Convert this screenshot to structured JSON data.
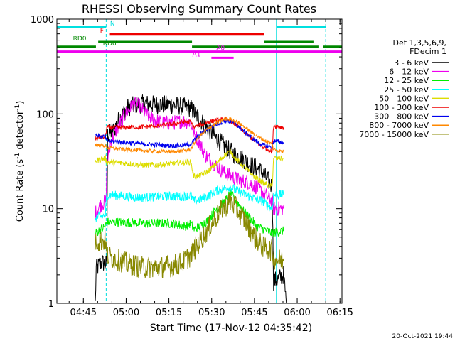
{
  "chart_data": {
    "type": "line",
    "title": "RHESSI Observing Summary Count Rates",
    "xlabel": "Start Time (17-Nov-12 04:35:42)",
    "ylabel_main": "Count Rate (s",
    "ylabel_sup1": "-1",
    "ylabel_mid": " detector",
    "ylabel_sup2": "-1",
    "ylabel_end": ")",
    "x_unit": "minutes since 04:35:42",
    "xlim": [
      0,
      100
    ],
    "ylim": [
      1,
      1000
    ],
    "yscale": "log",
    "x_ticks": [
      {
        "label": "04:45",
        "x": 9.3
      },
      {
        "label": "05:00",
        "x": 24.3
      },
      {
        "label": "05:15",
        "x": 39.3
      },
      {
        "label": "05:30",
        "x": 54.3
      },
      {
        "label": "05:45",
        "x": 69.3
      },
      {
        "label": "06:00",
        "x": 84.3
      },
      {
        "label": "06:15",
        "x": 99.3
      }
    ],
    "y_ticks": [
      {
        "label": "1",
        "y": 1
      },
      {
        "label": "10",
        "y": 10
      },
      {
        "label": "100",
        "y": 100
      },
      {
        "label": "1000",
        "y": 1000
      }
    ],
    "legend_header": [
      "Det 1,3,5,6,9,",
      "FDecim 1"
    ],
    "footer_timestamp": "20-Oct-2021 19:44",
    "vertical_markers": [
      {
        "x": 17.3,
        "color": "#00dddd",
        "style": "dashed"
      },
      {
        "x": 77.0,
        "color": "#00dddd",
        "style": "solid"
      },
      {
        "x": 94.3,
        "color": "#00dddd",
        "style": "dashed"
      }
    ],
    "flag_bars": [
      {
        "label": "N",
        "color": "#00e0e0",
        "label_x": 19.5,
        "y_frac": 0.027,
        "segments": [
          [
            0,
            17.3
          ],
          [
            77.3,
            94.3
          ]
        ]
      },
      {
        "label": "F",
        "color": "#ee0000",
        "label_x": 15.8,
        "y_frac": 0.052,
        "segments": [
          [
            18.6,
            72.7
          ]
        ]
      },
      {
        "label": "RD0",
        "color": "#008800",
        "label_x": 8.0,
        "y_frac": 0.08,
        "segments": [
          [
            14.5,
            47.4
          ],
          [
            72.7,
            90.0
          ]
        ]
      },
      {
        "label": "RD6",
        "color": "#008800",
        "label_x": 18.5,
        "y_frac": 0.097,
        "segments": [
          [
            0,
            13.7
          ],
          [
            47.4,
            92.0
          ],
          [
            93.5,
            100
          ]
        ]
      },
      {
        "label": "A0",
        "color": "#ee00ee",
        "label_x": 57.4,
        "y_frac": 0.114,
        "segments": [
          [
            0,
            100
          ]
        ]
      },
      {
        "label": "A1",
        "color": "#ee00ee",
        "label_x": 49.0,
        "y_frac": 0.136,
        "segments": [
          [
            54.2,
            62.0
          ]
        ]
      }
    ],
    "series": [
      {
        "name": "3 - 6 keV",
        "color": "#000000",
        "noise": 0.1,
        "points": [
          [
            13.5,
            1
          ],
          [
            13.8,
            2.3
          ],
          [
            15.5,
            2.7
          ],
          [
            17.5,
            2.6
          ],
          [
            17.8,
            60
          ],
          [
            20,
            68
          ],
          [
            22,
            90
          ],
          [
            25,
            118
          ],
          [
            28,
            125
          ],
          [
            31,
            128
          ],
          [
            35,
            125
          ],
          [
            40,
            125
          ],
          [
            44,
            120
          ],
          [
            47,
            115
          ],
          [
            48,
            105
          ],
          [
            50,
            88
          ],
          [
            53,
            70
          ],
          [
            56,
            55
          ],
          [
            59,
            45
          ],
          [
            62,
            38
          ],
          [
            65,
            34
          ],
          [
            68,
            29
          ],
          [
            71,
            26
          ],
          [
            73,
            22
          ],
          [
            74.5,
            19
          ],
          [
            75.5,
            17
          ],
          [
            76,
            1.7
          ],
          [
            77.5,
            1.8
          ],
          [
            79.5,
            2.0
          ],
          [
            80.5,
            1.0
          ]
        ]
      },
      {
        "name": "6 - 12 keV",
        "color": "#ee00ee",
        "noise": 0.08,
        "points": [
          [
            13.5,
            9
          ],
          [
            15.5,
            11
          ],
          [
            17.2,
            12
          ],
          [
            17.6,
            30
          ],
          [
            19,
            52
          ],
          [
            21,
            68
          ],
          [
            24,
            100
          ],
          [
            27,
            128
          ],
          [
            29,
            120
          ],
          [
            32,
            95
          ],
          [
            36,
            82
          ],
          [
            40,
            80
          ],
          [
            44,
            84
          ],
          [
            47,
            82
          ],
          [
            48,
            62
          ],
          [
            50,
            50
          ],
          [
            52,
            37
          ],
          [
            55,
            30
          ],
          [
            58,
            25
          ],
          [
            61,
            22
          ],
          [
            64,
            20
          ],
          [
            67,
            19
          ],
          [
            70,
            17
          ],
          [
            73,
            14
          ],
          [
            75.5,
            12
          ],
          [
            76,
            10
          ],
          [
            79.5,
            10
          ]
        ]
      },
      {
        "name": "12 - 25 keV",
        "color": "#00ee00",
        "noise": 0.05,
        "points": [
          [
            13.5,
            5.5
          ],
          [
            17,
            6.5
          ],
          [
            17.5,
            7.2
          ],
          [
            24,
            7.2
          ],
          [
            30,
            7.0
          ],
          [
            36,
            7.0
          ],
          [
            41,
            7.0
          ],
          [
            45,
            6.5
          ],
          [
            47,
            7
          ],
          [
            48,
            6
          ],
          [
            50,
            6.5
          ],
          [
            53,
            7.5
          ],
          [
            56,
            10
          ],
          [
            59,
            12
          ],
          [
            61,
            14.5
          ],
          [
            63,
            12
          ],
          [
            66,
            9
          ],
          [
            68.5,
            7.5
          ],
          [
            70,
            6.5
          ],
          [
            73,
            6.0
          ],
          [
            75.5,
            5.5
          ],
          [
            76,
            5.6
          ],
          [
            79.5,
            5.8
          ]
        ]
      },
      {
        "name": "25 - 50 keV",
        "color": "#00ffff",
        "noise": 0.05,
        "points": [
          [
            13.5,
            8
          ],
          [
            17,
            8.5
          ],
          [
            17.5,
            14
          ],
          [
            24,
            13.5
          ],
          [
            30,
            13.0
          ],
          [
            36,
            13.5
          ],
          [
            41,
            13.5
          ],
          [
            45,
            13.5
          ],
          [
            47,
            13.8
          ],
          [
            48,
            12
          ],
          [
            50,
            12.5
          ],
          [
            53,
            13.5
          ],
          [
            56,
            15.5
          ],
          [
            59,
            16.5
          ],
          [
            61,
            17
          ],
          [
            63,
            15.5
          ],
          [
            66,
            14
          ],
          [
            69,
            13
          ],
          [
            72,
            12
          ],
          [
            75.5,
            10
          ],
          [
            76,
            14
          ],
          [
            79.5,
            14
          ]
        ]
      },
      {
        "name": "50 - 100 keV",
        "color": "#dddd00",
        "noise": 0.03,
        "points": [
          [
            13.5,
            32
          ],
          [
            17,
            34
          ],
          [
            17.5,
            31
          ],
          [
            24,
            30
          ],
          [
            30,
            29
          ],
          [
            36,
            29
          ],
          [
            41,
            30
          ],
          [
            45,
            31
          ],
          [
            47,
            31
          ],
          [
            48,
            22
          ],
          [
            50,
            22
          ],
          [
            53,
            25
          ],
          [
            56,
            30
          ],
          [
            59,
            37
          ],
          [
            61,
            40
          ],
          [
            63,
            33
          ],
          [
            66,
            27
          ],
          [
            69,
            22
          ],
          [
            72,
            19
          ],
          [
            75.5,
            17
          ],
          [
            76,
            34
          ],
          [
            79.5,
            34
          ]
        ]
      },
      {
        "name": "100 - 300 keV",
        "color": "#ee0000",
        "noise": 0.025,
        "points": [
          [
            13.5,
            55
          ],
          [
            17,
            57
          ],
          [
            17.5,
            72
          ],
          [
            24,
            72
          ],
          [
            30,
            73
          ],
          [
            36,
            75
          ],
          [
            41,
            78
          ],
          [
            44,
            82
          ],
          [
            47,
            82
          ],
          [
            48,
            72
          ],
          [
            50,
            76
          ],
          [
            53,
            82
          ],
          [
            56,
            86
          ],
          [
            59,
            87
          ],
          [
            61,
            84
          ],
          [
            63,
            76
          ],
          [
            66,
            63
          ],
          [
            69,
            53
          ],
          [
            72,
            45
          ],
          [
            75.5,
            40
          ],
          [
            76,
            75
          ],
          [
            79.5,
            72
          ]
        ]
      },
      {
        "name": "300 - 800 keV",
        "color": "#0000ee",
        "noise": 0.025,
        "points": [
          [
            13.5,
            60
          ],
          [
            17,
            57
          ],
          [
            17.5,
            52
          ],
          [
            24,
            50
          ],
          [
            30,
            48
          ],
          [
            36,
            47
          ],
          [
            41,
            46
          ],
          [
            45,
            47
          ],
          [
            47,
            48
          ],
          [
            48,
            52
          ],
          [
            50,
            60
          ],
          [
            53,
            70
          ],
          [
            56,
            78
          ],
          [
            59,
            84
          ],
          [
            61,
            83
          ],
          [
            63,
            78
          ],
          [
            66,
            64
          ],
          [
            69,
            54
          ],
          [
            72,
            47
          ],
          [
            75.5,
            45
          ],
          [
            76,
            52
          ],
          [
            79.5,
            50
          ]
        ]
      },
      {
        "name": "800 - 7000 keV",
        "color": "#ff8800",
        "noise": 0.02,
        "points": [
          [
            13.5,
            47
          ],
          [
            17,
            46
          ],
          [
            17.5,
            44
          ],
          [
            24,
            42
          ],
          [
            30,
            41
          ],
          [
            36,
            40
          ],
          [
            41,
            40
          ],
          [
            45,
            41
          ],
          [
            47,
            42
          ],
          [
            48,
            48
          ],
          [
            50,
            58
          ],
          [
            53,
            70
          ],
          [
            56,
            80
          ],
          [
            59,
            88
          ],
          [
            61,
            88
          ],
          [
            63,
            83
          ],
          [
            66,
            72
          ],
          [
            69,
            62
          ],
          [
            72,
            54
          ],
          [
            75.5,
            48
          ],
          [
            76,
            42
          ],
          [
            79.5,
            40
          ]
        ]
      },
      {
        "name": "7000 - 15000 keV",
        "color": "#888800",
        "noise": 0.12,
        "points": [
          [
            13.5,
            4.5
          ],
          [
            17,
            4.6
          ],
          [
            17.5,
            3.2
          ],
          [
            20,
            3.0
          ],
          [
            25,
            2.6
          ],
          [
            30,
            2.4
          ],
          [
            36,
            2.4
          ],
          [
            41,
            2.5
          ],
          [
            44,
            2.7
          ],
          [
            47,
            3.2
          ],
          [
            49,
            4.0
          ],
          [
            52,
            5.5
          ],
          [
            55,
            7.5
          ],
          [
            58,
            10
          ],
          [
            61,
            12
          ],
          [
            63,
            10
          ],
          [
            66,
            7.5
          ],
          [
            69,
            5.2
          ],
          [
            72,
            4.0
          ],
          [
            75.5,
            3.6
          ],
          [
            76,
            3.0
          ],
          [
            79.5,
            2.8
          ]
        ]
      }
    ],
    "legend": [
      "3 - 6 keV",
      "6 - 12 keV",
      "12 - 25 keV",
      "25 - 50 keV",
      "50 - 100 keV",
      "100 - 300 keV",
      "300 - 800 keV",
      "800 - 7000 keV",
      "7000 - 15000 keV"
    ]
  }
}
